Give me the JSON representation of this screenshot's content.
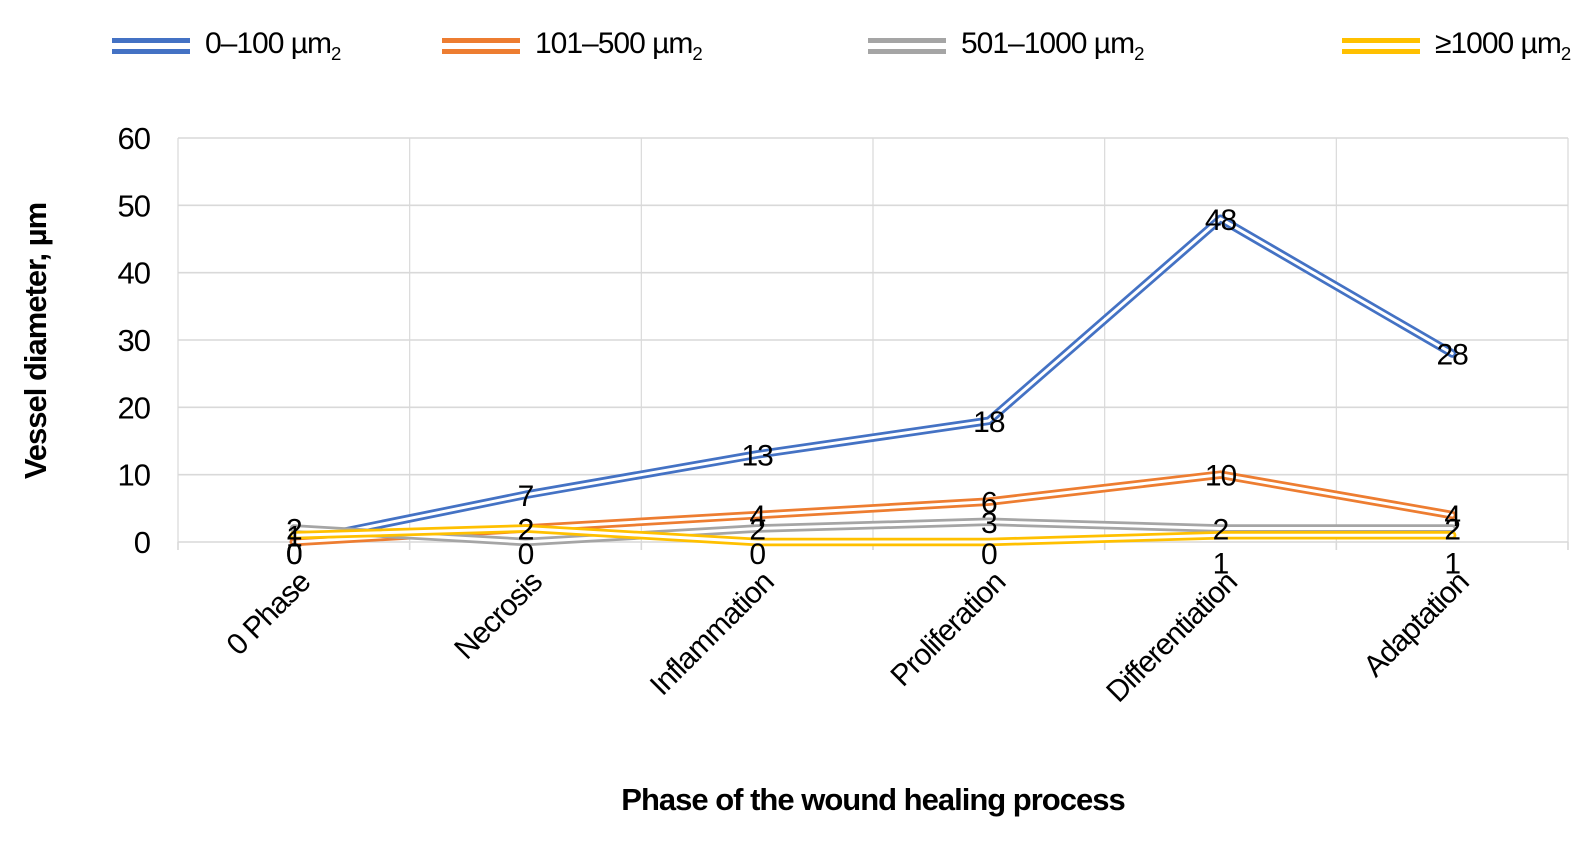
{
  "chart_data": {
    "type": "line",
    "line_style": "double-stroke",
    "title": "",
    "xlabel": "Phase of the wound healing process",
    "ylabel": "Vessel diameter, µm",
    "categories": [
      "0 Phase",
      "Necrosis",
      "Inflammation",
      "Proliferation",
      "Differentiation",
      "Adaptation"
    ],
    "series": [
      {
        "name": "0–100 µm",
        "name_sub": "2",
        "color": "#4472C4",
        "values": [
          0,
          7,
          13,
          18,
          48,
          28
        ]
      },
      {
        "name": "101–500 µm",
        "name_sub": "2",
        "color": "#ED7D31",
        "values": [
          0,
          2,
          4,
          6,
          10,
          4
        ]
      },
      {
        "name": "501–1000 µm",
        "name_sub": "2",
        "color": "#A5A5A5",
        "values": [
          2,
          0,
          2,
          3,
          2,
          2
        ]
      },
      {
        "name": "≥1000 µm",
        "name_sub": "2",
        "color": "#FFC000",
        "values": [
          1,
          2,
          0,
          0,
          1,
          1
        ]
      }
    ],
    "ylim": [
      0,
      60
    ],
    "yticks": [
      0,
      10,
      20,
      30,
      40,
      50,
      60
    ],
    "grid": true,
    "data_labels": true,
    "legend_position": "top"
  },
  "colors": {
    "background": "#FFFFFF",
    "gridline": "#D9D9D9",
    "data_label_text": "#000000",
    "axis_text": "#000000"
  }
}
